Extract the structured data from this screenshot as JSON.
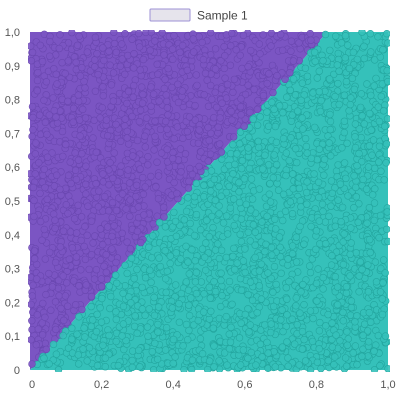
{
  "legend": {
    "label": "Sample 1"
  },
  "colors": {
    "upper_region": "#7b55c3",
    "upper_region_dark": "#6a47b0",
    "lower_region": "#35c1ba",
    "lower_region_dark": "#23a59e",
    "legend_swatch_fill": "#e6e4ec",
    "legend_swatch_stroke": "#9d92d6",
    "axis": "#cccccc"
  },
  "chart_data": {
    "type": "scatter",
    "title": "",
    "xlabel": "",
    "ylabel": "",
    "xlim": [
      0,
      1
    ],
    "ylim": [
      0,
      1
    ],
    "x_ticks": [
      "0",
      "0,2",
      "0,4",
      "0,6",
      "0,8",
      "1,0"
    ],
    "y_ticks": [
      "0",
      "0,1",
      "0,2",
      "0,3",
      "0,4",
      "0,5",
      "0,6",
      "0,7",
      "0,8",
      "0,9",
      "1,0"
    ],
    "series": [
      {
        "name": "Sample 1",
        "distribution": "uniform on unit square"
      }
    ],
    "regions": [
      {
        "region": "upper-left",
        "rule": "y > 1.2 * x",
        "color_key": "upper_region"
      },
      {
        "region": "lower-right",
        "rule": "y <= 1.2 * x",
        "color_key": "lower_region"
      }
    ],
    "boundary": {
      "from": [
        0,
        0
      ],
      "to": [
        0.83,
        1.0
      ]
    },
    "grid": false,
    "legend_position": "top-center"
  }
}
